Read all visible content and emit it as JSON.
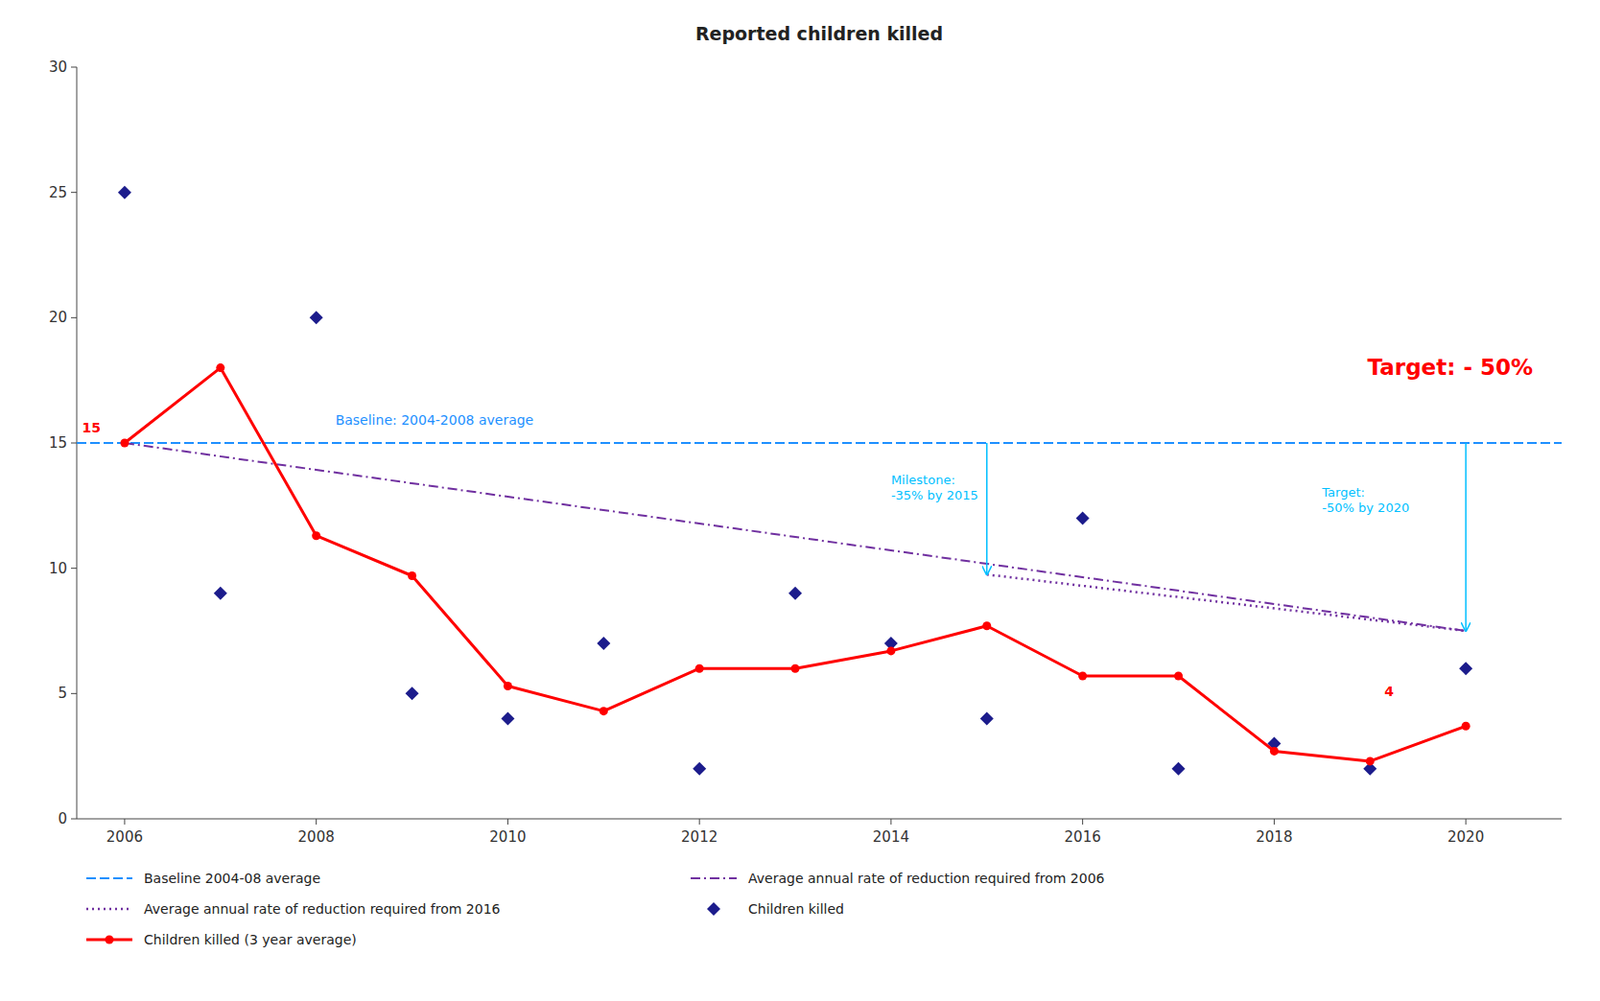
{
  "chart_data": {
    "type": "line",
    "title": "Reported children killed",
    "xlim": [
      2005.5,
      2021.0
    ],
    "ylim": [
      0,
      30
    ],
    "xticks": [
      2006,
      2008,
      2010,
      2012,
      2014,
      2016,
      2018,
      2020
    ],
    "yticks": [
      0,
      5,
      10,
      15,
      20,
      25,
      30
    ],
    "grid": false,
    "legend": "bottom",
    "series": [
      {
        "name": "Baseline 2004-08 average",
        "type": "hline",
        "color": "#1E90FF",
        "line_style": "dashed",
        "marker": "none",
        "values": [
          15
        ]
      },
      {
        "name": "Average annual rate of reduction required from 2006",
        "type": "line",
        "color": "#7030A0",
        "line_style": "dashdot",
        "marker": "none",
        "x": [
          2006,
          2020
        ],
        "values": [
          15,
          7.5
        ]
      },
      {
        "name": "Average annual rate of reduction required from 2016",
        "type": "line",
        "color": "#7030A0",
        "line_style": "dotted",
        "marker": "none",
        "x": [
          2015,
          2020
        ],
        "values": [
          9.75,
          7.5
        ]
      },
      {
        "name": "Children killed",
        "type": "scatter",
        "color": "#1C1C8C",
        "line_style": "none",
        "marker": "diamond",
        "x": [
          2006,
          2007,
          2008,
          2009,
          2010,
          2011,
          2012,
          2013,
          2014,
          2015,
          2016,
          2017,
          2018,
          2019,
          2020
        ],
        "values": [
          25,
          9,
          20,
          5,
          4,
          7,
          2,
          9,
          7,
          4,
          12,
          2,
          3,
          2,
          6
        ]
      },
      {
        "name": "Children killed (3 year average)",
        "type": "line",
        "color": "#FF0000",
        "line_style": "solid",
        "marker": "circle",
        "x": [
          2006,
          2007,
          2008,
          2009,
          2010,
          2011,
          2012,
          2013,
          2014,
          2015,
          2016,
          2017,
          2018,
          2019,
          2020
        ],
        "values": [
          15.0,
          18.0,
          11.3,
          9.7,
          5.3,
          4.3,
          6.0,
          6.0,
          6.7,
          7.7,
          5.7,
          5.7,
          2.7,
          2.3,
          3.7
        ]
      }
    ],
    "annotations": [
      {
        "text": "Baseline: 2004-2008 average",
        "x": 2008.2,
        "y": 15.6,
        "color": "#1E90FF"
      },
      {
        "text": "15",
        "x": 2005.75,
        "y": 15.3,
        "color": "#FF0000"
      },
      {
        "text": "4",
        "x": 2019.15,
        "y": 4.8,
        "color": "#FF0000"
      },
      {
        "text": "Milestone:\n-35% by 2015",
        "x": 2014.0,
        "y": 13.8,
        "color": "#00BFFF"
      },
      {
        "text": "Target:\n-50% by 2020",
        "x": 2018.5,
        "y": 13.3,
        "color": "#00BFFF"
      },
      {
        "text": "Target: - 50%",
        "x": 2020.7,
        "y": 18.5,
        "color": "red"
      }
    ],
    "arrows": [
      {
        "x": 2015,
        "from": 15,
        "to": 9.75,
        "color": "#00BFFF"
      },
      {
        "x": 2020,
        "from": 15,
        "to": 7.5,
        "color": "#00BFFF"
      }
    ]
  }
}
